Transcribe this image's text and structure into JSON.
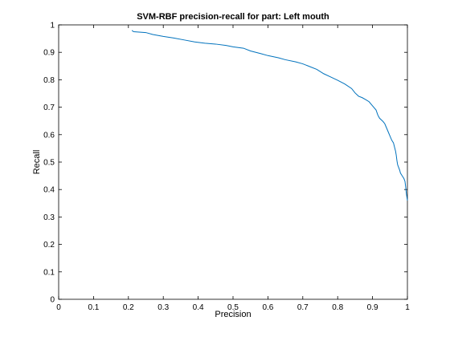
{
  "chart_data": {
    "type": "line",
    "title": "SVM-RBF precision-recall for part: Left mouth",
    "xlabel": "Precision",
    "ylabel": "Recall",
    "xlim": [
      0,
      1
    ],
    "ylim": [
      0,
      1
    ],
    "xticks": [
      "0",
      "0.1",
      "0.2",
      "0.3",
      "0.4",
      "0.5",
      "0.6",
      "0.7",
      "0.8",
      "0.9",
      "1"
    ],
    "yticks": [
      "0",
      "0.1",
      "0.2",
      "0.3",
      "0.4",
      "0.5",
      "0.6",
      "0.7",
      "0.8",
      "0.9",
      "1"
    ],
    "grid": false,
    "line_color": "#0072bd",
    "series": [
      {
        "x": [
          0.21,
          0.215,
          0.25,
          0.27,
          0.3,
          0.33,
          0.36,
          0.39,
          0.42,
          0.45,
          0.48,
          0.5,
          0.53,
          0.55,
          0.58,
          0.6,
          0.63,
          0.65,
          0.68,
          0.7,
          0.72,
          0.74,
          0.76,
          0.78,
          0.8,
          0.82,
          0.84,
          0.85,
          0.86,
          0.87,
          0.88,
          0.89,
          0.9,
          0.91,
          0.915,
          0.92,
          0.93,
          0.935,
          0.94,
          0.945,
          0.95,
          0.955,
          0.96,
          0.963,
          0.966,
          0.968,
          0.97,
          0.972,
          0.975,
          0.978,
          0.98,
          0.985,
          0.99,
          0.993,
          0.995,
          0.997,
          1.0
        ],
        "y": [
          0.98,
          0.975,
          0.972,
          0.965,
          0.958,
          0.952,
          0.945,
          0.938,
          0.933,
          0.93,
          0.925,
          0.92,
          0.915,
          0.905,
          0.895,
          0.888,
          0.88,
          0.873,
          0.865,
          0.858,
          0.848,
          0.838,
          0.822,
          0.81,
          0.798,
          0.785,
          0.768,
          0.752,
          0.74,
          0.735,
          0.728,
          0.72,
          0.705,
          0.69,
          0.672,
          0.66,
          0.648,
          0.64,
          0.625,
          0.61,
          0.595,
          0.58,
          0.57,
          0.555,
          0.54,
          0.525,
          0.505,
          0.49,
          0.48,
          0.47,
          0.46,
          0.45,
          0.44,
          0.43,
          0.41,
          0.385,
          0.36
        ]
      }
    ]
  }
}
